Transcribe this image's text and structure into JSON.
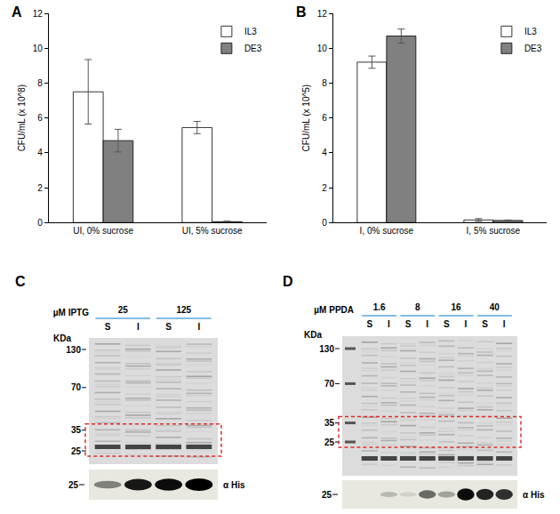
{
  "chart_data": [
    {
      "title": "A",
      "type": "bar",
      "categories": [
        "UI, 0% sucrose",
        "UI, 5% sucrose"
      ],
      "series": [
        {
          "name": "IL3",
          "color": "#ffffff",
          "values": [
            7.5,
            5.45
          ],
          "errors": [
            1.85,
            0.35
          ]
        },
        {
          "name": "DE3",
          "color": "#808080",
          "values": [
            4.7,
            0.05
          ],
          "errors": [
            0.65,
            0.03
          ]
        }
      ],
      "y_label": "CFU/mL (x 10^8)",
      "ylim": [
        0,
        12
      ],
      "yticks": [
        0,
        2,
        4,
        6,
        8,
        10,
        12
      ],
      "grid": false,
      "legend": "top right"
    },
    {
      "title": "B",
      "type": "bar",
      "categories": [
        "I, 0% sucrose",
        "I, 5% sucrose"
      ],
      "series": [
        {
          "name": "IL3",
          "color": "#ffffff",
          "values": [
            9.2,
            0.15
          ],
          "errors": [
            0.35,
            0.08
          ]
        },
        {
          "name": "DE3",
          "color": "#808080",
          "values": [
            10.7,
            0.12
          ],
          "errors": [
            0.4,
            0.03
          ]
        }
      ],
      "y_label": "CFU/mL (x 10^5)",
      "ylim": [
        0,
        12
      ],
      "yticks": [
        0,
        2,
        4,
        6,
        8,
        10,
        12
      ],
      "grid": false,
      "legend": "top right"
    }
  ],
  "gels": [
    {
      "title": "C",
      "condition_label": "µM IPTG",
      "conditions": [
        "25",
        "125"
      ],
      "lanes": [
        "S",
        "I"
      ],
      "marker_unit": "KDa",
      "markers": [
        130,
        70,
        35,
        25
      ],
      "blot_label": "α His",
      "blot_markers": [
        25
      ]
    },
    {
      "title": "D",
      "condition_label": "µM PPDA",
      "conditions": [
        "1.6",
        "8",
        "16",
        "40"
      ],
      "lanes": [
        "S",
        "I"
      ],
      "marker_unit": "KDa",
      "markers": [
        130,
        70,
        35,
        25
      ],
      "blot_label": "α His",
      "blot_markers": [
        25
      ]
    }
  ]
}
